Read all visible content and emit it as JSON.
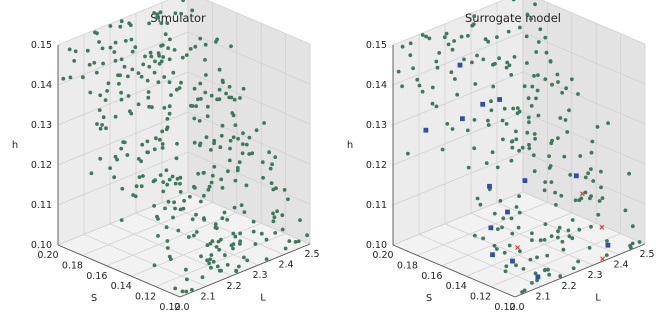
{
  "chart_data": [
    {
      "type": "scatter",
      "title": "Simulator",
      "axes": {
        "x": {
          "label": "L",
          "range": [
            2.0,
            2.5
          ],
          "ticks": [
            "2.0",
            "2.1",
            "2.2",
            "2.3",
            "2.4",
            "2.5"
          ]
        },
        "y": {
          "label": "S",
          "range": [
            0.1,
            0.2
          ],
          "ticks": [
            "0.10",
            "0.12",
            "0.14",
            "0.16",
            "0.18",
            "0.20"
          ]
        },
        "z": {
          "label": "h",
          "range": [
            0.1,
            0.15
          ],
          "ticks": [
            "0.10",
            "0.11",
            "0.12",
            "0.13",
            "0.14",
            "0.15"
          ]
        }
      },
      "grid": true,
      "series": [
        {
          "marker": "circle",
          "color": "#3d7a5a",
          "points": "approx. 350 samples, L 2.0-2.5, S 0.10-0.20, h 0.10-0.15, h increasing with S"
        }
      ]
    },
    {
      "type": "scatter",
      "title": "Surrogate model",
      "axes": {
        "x": {
          "label": "L",
          "range": [
            2.0,
            2.5
          ],
          "ticks": [
            "2.0",
            "2.1",
            "2.2",
            "2.3",
            "2.4",
            "2.5"
          ]
        },
        "y": {
          "label": "S",
          "range": [
            0.1,
            0.2
          ],
          "ticks": [
            "0.10",
            "0.12",
            "0.14",
            "0.16",
            "0.18",
            "0.20"
          ]
        },
        "z": {
          "label": "h",
          "range": [
            0.1,
            0.15
          ],
          "ticks": [
            "0.10",
            "0.11",
            "0.12",
            "0.13",
            "0.14",
            "0.15"
          ]
        }
      },
      "grid": true,
      "series": [
        {
          "marker": "circle",
          "color": "#3d7a5a",
          "points": "approx. 230 samples, same region as simulator"
        },
        {
          "marker": "square",
          "color": "#2f4fa8",
          "points": "approx. 14 samples"
        },
        {
          "marker": "x",
          "color": "#e03030",
          "points": "approx. 4 samples"
        }
      ]
    }
  ]
}
